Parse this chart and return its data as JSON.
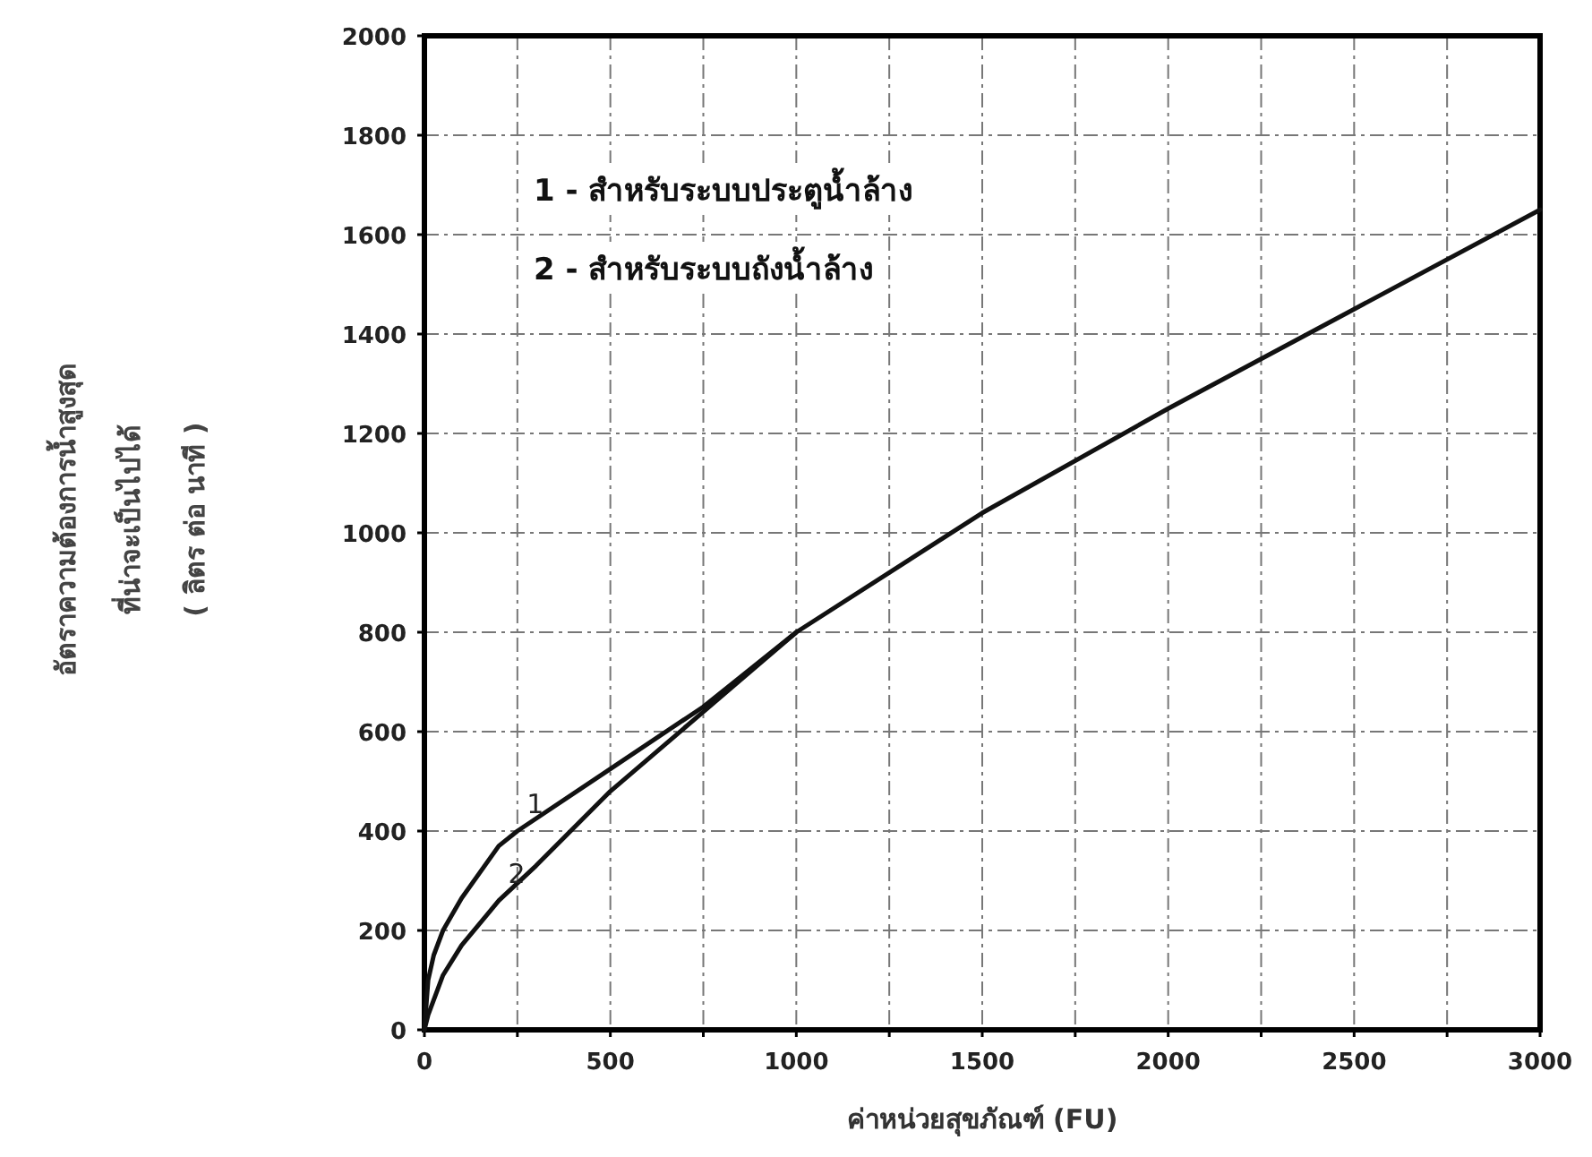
{
  "chart_data": {
    "type": "line",
    "xlabel": "ค่าหน่วยสุขภัณฑ์ (FU)",
    "ylabel": "อัตราความต้องการน้ำสูงสุด\nที่น่าจะเป็นไปได้\n( ลิตร ต่อ นาที )",
    "x": [
      0,
      10,
      25,
      50,
      100,
      200,
      250,
      500,
      750,
      1000,
      1500,
      2000,
      2500,
      3000
    ],
    "series": [
      {
        "color": "#111111",
        "values": [
          0,
          100,
          150,
          200,
          265,
          370,
          400,
          525,
          650,
          800,
          1040,
          1250,
          1450,
          1650
        ]
      },
      {
        "color": "#111111",
        "x": [
          0,
          10,
          50,
          100,
          200,
          300,
          500,
          750,
          1000
        ],
        "values": [
          0,
          30,
          110,
          170,
          260,
          330,
          480,
          640,
          800
        ]
      }
    ],
    "xlim": [
      0,
      3000
    ],
    "ylim": [
      0,
      2000
    ],
    "xticks": [
      0,
      {
        "value": 250,
        "label": null
      },
      500,
      {
        "value": 750,
        "label": null
      },
      1000,
      {
        "value": 1250,
        "label": null
      },
      1500,
      {
        "value": 1750,
        "label": null
      },
      2000,
      {
        "value": 2250,
        "label": null
      },
      2500,
      {
        "value": 2750,
        "label": null
      },
      3000
    ],
    "yticks": [
      0,
      200,
      400,
      600,
      800,
      1000,
      1200,
      1400,
      1600,
      1800,
      2000
    ],
    "grid": true,
    "marker": "none",
    "annotations": [
      "1 - สำหรับระบบประตูน้ำล้าง",
      "2 - สำหรับระบบถังน้ำล้าง",
      {
        "text": "1",
        "x": 250,
        "y": 400
      },
      {
        "text": "2",
        "x": 200,
        "y": 260
      }
    ]
  }
}
